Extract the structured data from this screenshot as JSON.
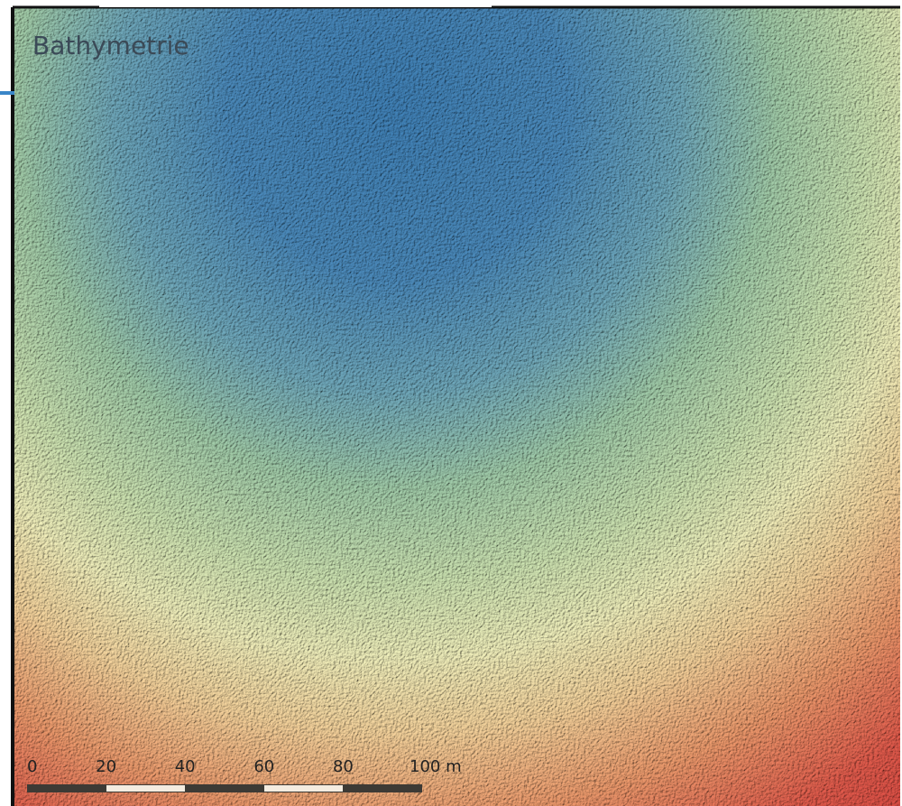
{
  "title": "Bathymetrie",
  "scale_bar": {
    "labels": [
      "0",
      "20",
      "40",
      "60",
      "80",
      "100 m"
    ]
  }
}
